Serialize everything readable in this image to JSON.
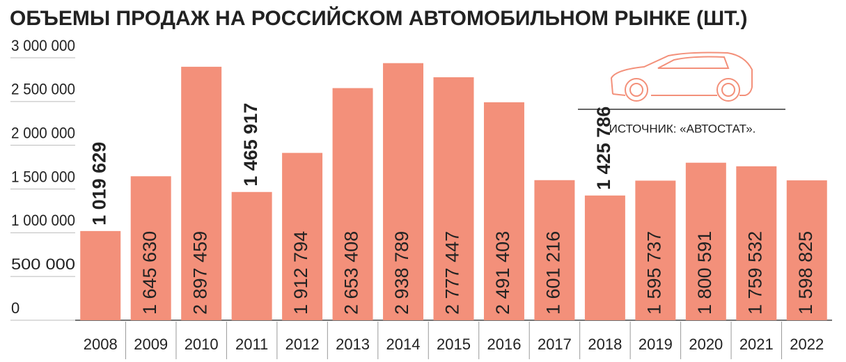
{
  "chart_data": {
    "type": "bar",
    "title": "ОБЪЕМЫ ПРОДАЖ НА РОССИЙСКОМ АВТОМОБИЛЬНОМ РЫНКЕ (ШТ.)",
    "source": "ИСТОЧНИК: «АВТОСТАТ».",
    "categories": [
      "2008",
      "2009",
      "2010",
      "2011",
      "2012",
      "2013",
      "2014",
      "2015",
      "2016",
      "2017",
      "2018",
      "2019",
      "2020",
      "2021",
      "2022"
    ],
    "values": [
      1019629,
      1645630,
      2897459,
      1465917,
      1912794,
      2653408,
      2938789,
      2777447,
      2491403,
      1601216,
      1425786,
      1595737,
      1800591,
      1759532,
      1598825
    ],
    "value_labels": [
      "1 019 629",
      "1 645 630",
      "2 897 459",
      "1 465 917",
      "1 912 794",
      "2 653 408",
      "2 938 789",
      "2 777 447",
      "2 491 403",
      "1 601 216",
      "1 425 786",
      "1 595 737",
      "1 800 591",
      "1 759 532",
      "1 598 825"
    ],
    "color": "#f3907a",
    "ylim": [
      0,
      3000000
    ],
    "yticks": [
      0,
      {
        "value": 500000,
        "label": "500 000"
      },
      {
        "value": 1000000,
        "label": "1 000 000"
      },
      {
        "value": 1500000,
        "label": "1 500 000"
      },
      {
        "value": 2000000,
        "label": "2 000 000"
      },
      {
        "value": 2500000,
        "label": "2 500 000"
      },
      {
        "value": 3000000,
        "label": "3 000 000"
      }
    ]
  }
}
